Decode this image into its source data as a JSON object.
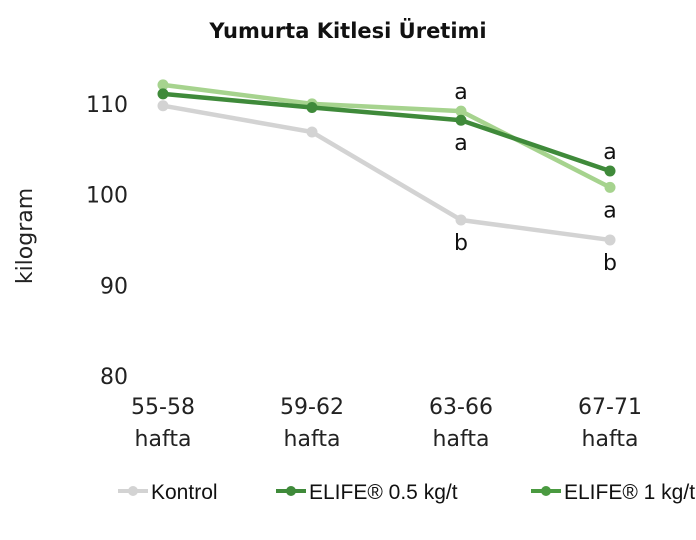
{
  "chart_data": {
    "type": "line",
    "title": "Yumurta Kitlesi Üretimi",
    "xlabel": "",
    "ylabel": "kilogram",
    "ylim": [
      80,
      113
    ],
    "yticks": [
      80,
      90,
      100,
      110
    ],
    "categories": [
      [
        "55-58",
        "hafta"
      ],
      [
        "59-62",
        "hafta"
      ],
      [
        "63-66",
        "hafta"
      ],
      [
        "67-71",
        "hafta"
      ]
    ],
    "series": [
      {
        "name": "Kontrol",
        "color": "#d3d3d3",
        "legend_color": "#d3d3d3",
        "values": [
          109.8,
          106.9,
          97.2,
          95.0
        ],
        "labels": [
          "",
          "",
          "b",
          "b"
        ]
      },
      {
        "name": "ELIFE® 0.5 kg/t",
        "color": "#3f8a3a",
        "legend_color": "#3f8a3a",
        "values": [
          111.1,
          109.6,
          108.2,
          102.6
        ],
        "labels": [
          "",
          "",
          "a",
          "a"
        ]
      },
      {
        "name": "ELIFE® 1 kg/t",
        "color": "#a6d38e",
        "legend_color": "#4a9a40",
        "values": [
          112.1,
          110.0,
          109.2,
          100.8
        ],
        "labels": [
          "",
          "",
          "a",
          "a"
        ]
      }
    ],
    "legend_position": "bottom"
  }
}
